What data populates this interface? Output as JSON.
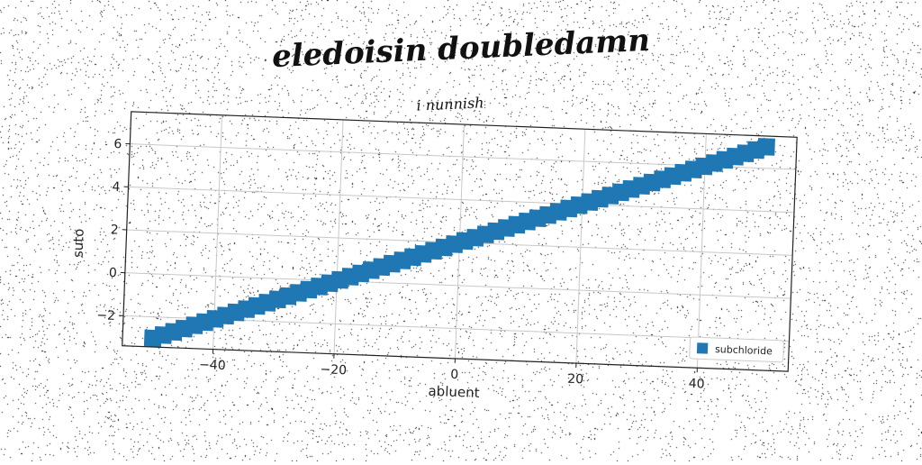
{
  "chart_data": {
    "type": "scatter",
    "title": "eledoisin doubledamn",
    "subtitle": "i nunnish",
    "xlabel": "abluent",
    "ylabel": "suto",
    "xlim": [
      -55,
      55
    ],
    "ylim": [
      -3.4,
      7.5
    ],
    "xticks": [
      -40,
      -20,
      0,
      20,
      40
    ],
    "xtick_labels": [
      "−40",
      "−20",
      "0",
      "20",
      "40"
    ],
    "yticks": [
      -2,
      0,
      2,
      4,
      6
    ],
    "ytick_labels": [
      "−2",
      "0",
      "2",
      "4",
      "6"
    ],
    "grid": true,
    "legend_position": "bottom-right",
    "series": [
      {
        "name": "subchloride",
        "color": "#1f77b4",
        "marker": "square",
        "x_start": -50,
        "x_end": 50,
        "count": 60,
        "y_start": -3.0,
        "y_end": 7.0
      }
    ]
  }
}
